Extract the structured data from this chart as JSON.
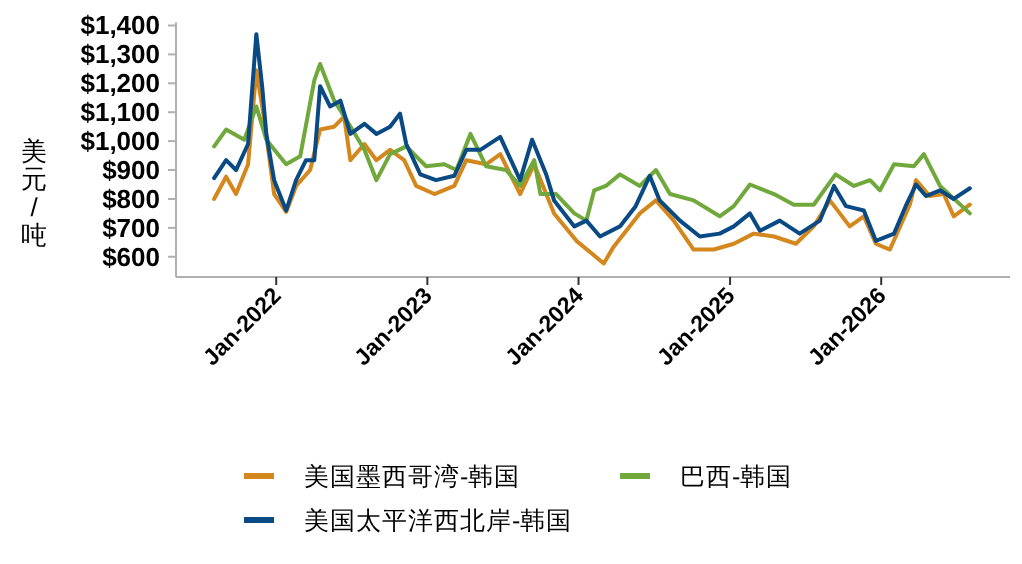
{
  "chart_data": {
    "type": "line",
    "ylabel": "美元/吨",
    "xlim": [
      "2021-05-04",
      "2026-11-08"
    ],
    "ylim": [
      530,
      1410
    ],
    "xticks": [
      {
        "value": "2022-01-01",
        "label": "Jan-2022"
      },
      {
        "value": "2023-01-01",
        "label": "Jan-2023"
      },
      {
        "value": "2024-01-01",
        "label": "Jan-2024"
      },
      {
        "value": "2025-01-01",
        "label": "Jan-2025"
      },
      {
        "value": "2026-01-01",
        "label": "Jan-2026"
      }
    ],
    "yticks": [
      {
        "value": 600,
        "label": "$600"
      },
      {
        "value": 700,
        "label": "$700"
      },
      {
        "value": 800,
        "label": "$800"
      },
      {
        "value": 900,
        "label": "$900"
      },
      {
        "value": 1000,
        "label": "$1,000"
      },
      {
        "value": 1100,
        "label": "$1,100"
      },
      {
        "value": 1200,
        "label": "$1,200"
      },
      {
        "value": 1300,
        "label": "$1,300"
      },
      {
        "value": 1400,
        "label": "$1,400"
      }
    ],
    "grid": false,
    "legend": "bottom",
    "marker": "none",
    "line_style": "solid",
    "series": [
      {
        "name": "美国墨西哥湾-韩国",
        "color": "#d4871c",
        "x": [
          "2021-08-04",
          "2021-09-02",
          "2021-09-26",
          "2021-10-25",
          "2021-11-14",
          "2021-12-03",
          "2021-12-27",
          "2022-01-25",
          "2022-02-18",
          "2022-03-24",
          "2022-04-17",
          "2022-05-21",
          "2022-06-14",
          "2022-06-29",
          "2022-08-02",
          "2022-08-31",
          "2022-10-03",
          "2022-11-06",
          "2022-12-05",
          "2023-01-18",
          "2023-03-07",
          "2023-04-05",
          "2023-05-23",
          "2023-06-26",
          "2023-08-13",
          "2023-09-16",
          "2023-11-03",
          "2023-12-27",
          "2024-03-02",
          "2024-03-26",
          "2024-05-28",
          "2024-07-06",
          "2024-08-18",
          "2024-10-05",
          "2024-11-23",
          "2025-01-10",
          "2025-02-27",
          "2025-04-17",
          "2025-06-09",
          "2025-07-22",
          "2025-08-30",
          "2025-10-17",
          "2025-11-20",
          "2025-12-19",
          "2026-01-22",
          "2026-03-11",
          "2026-03-26",
          "2026-04-28",
          "2026-06-01",
          "2026-06-25",
          "2026-08-03"
        ],
        "values": [
          800,
          877,
          817,
          920,
          1245,
          1075,
          817,
          755,
          845,
          900,
          1040,
          1050,
          1085,
          934,
          990,
          934,
          970,
          934,
          845,
          817,
          845,
          934,
          920,
          955,
          817,
          920,
          750,
          655,
          577,
          635,
          750,
          795,
          725,
          625,
          625,
          645,
          680,
          670,
          645,
          705,
          795,
          705,
          740,
          645,
          625,
          780,
          865,
          810,
          817,
          740,
          780
        ]
      },
      {
        "name": "巴西-韩国",
        "color": "#70a83b",
        "x": [
          "2021-08-04",
          "2021-09-02",
          "2021-10-16",
          "2021-11-14",
          "2021-12-08",
          "2022-01-25",
          "2022-02-28",
          "2022-04-03",
          "2022-04-17",
          "2022-05-21",
          "2022-06-19",
          "2022-08-02",
          "2022-08-31",
          "2022-10-03",
          "2022-11-11",
          "2022-12-29",
          "2023-02-11",
          "2023-03-12",
          "2023-04-15",
          "2023-05-23",
          "2023-07-10",
          "2023-08-13",
          "2023-09-16",
          "2023-10-01",
          "2023-11-08",
          "2023-12-22",
          "2024-01-20",
          "2024-02-08",
          "2024-03-07",
          "2024-04-10",
          "2024-05-28",
          "2024-07-06",
          "2024-08-09",
          "2024-10-05",
          "2024-12-07",
          "2025-01-10",
          "2025-02-18",
          "2025-04-17",
          "2025-06-04",
          "2025-07-22",
          "2025-09-13",
          "2025-10-27",
          "2025-12-05",
          "2025-12-29",
          "2026-02-01",
          "2026-03-21",
          "2026-04-14",
          "2026-05-23",
          "2026-06-30",
          "2026-08-03"
        ],
        "values": [
          982,
          1040,
          1005,
          1120,
          1005,
          920,
          948,
          1210,
          1267,
          1140,
          1075,
          970,
          865,
          955,
          982,
          913,
          920,
          900,
          1025,
          913,
          900,
          845,
          934,
          817,
          817,
          750,
          725,
          830,
          845,
          885,
          845,
          900,
          817,
          795,
          740,
          775,
          850,
          817,
          780,
          780,
          885,
          845,
          865,
          830,
          920,
          913,
          955,
          845,
          795,
          750
        ]
      },
      {
        "name": "美国太平洋西北岸-韩国",
        "color": "#0a4a84",
        "x": [
          "2021-08-04",
          "2021-09-02",
          "2021-09-26",
          "2021-10-25",
          "2021-11-14",
          "2021-11-28",
          "2021-12-08",
          "2021-12-27",
          "2022-01-25",
          "2022-02-18",
          "2022-03-14",
          "2022-04-03",
          "2022-04-17",
          "2022-05-11",
          "2022-06-05",
          "2022-06-29",
          "2022-08-02",
          "2022-08-31",
          "2022-10-03",
          "2022-10-27",
          "2022-11-11",
          "2022-12-15",
          "2023-01-22",
          "2023-03-07",
          "2023-04-05",
          "2023-05-09",
          "2023-06-26",
          "2023-08-13",
          "2023-09-11",
          "2023-10-15",
          "2023-11-03",
          "2023-12-22",
          "2024-01-20",
          "2024-02-22",
          "2024-04-10",
          "2024-05-18",
          "2024-06-21",
          "2024-07-15",
          "2024-09-02",
          "2024-10-20",
          "2024-12-07",
          "2025-01-10",
          "2025-02-18",
          "2025-03-14",
          "2025-05-01",
          "2025-06-18",
          "2025-08-06",
          "2025-09-09",
          "2025-10-08",
          "2025-11-20",
          "2025-12-19",
          "2026-02-01",
          "2026-03-01",
          "2026-03-26",
          "2026-04-19",
          "2026-05-23",
          "2026-06-25",
          "2026-08-03"
        ],
        "values": [
          872,
          934,
          900,
          990,
          1370,
          1190,
          1025,
          865,
          760,
          865,
          934,
          934,
          1190,
          1120,
          1140,
          1025,
          1060,
          1025,
          1050,
          1095,
          990,
          885,
          865,
          880,
          970,
          970,
          1015,
          865,
          1005,
          885,
          795,
          705,
          725,
          670,
          705,
          775,
          880,
          795,
          725,
          670,
          680,
          705,
          750,
          690,
          725,
          680,
          725,
          845,
          775,
          760,
          655,
          680,
          775,
          850,
          810,
          830,
          800,
          837
        ]
      }
    ]
  }
}
